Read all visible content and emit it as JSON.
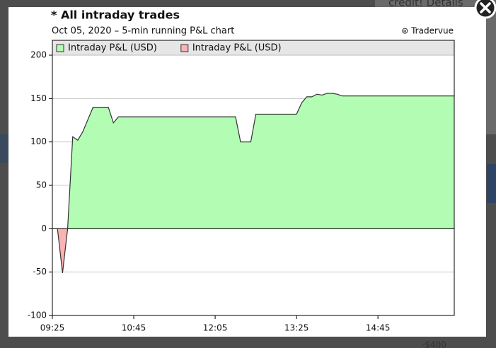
{
  "background": {
    "top_text": "credit! Details",
    "bottom_text": "-$400"
  },
  "chart_data": {
    "type": "area",
    "title": "* All intraday trades",
    "subtitle": "Oct 05, 2020 – 5-min running P&L chart",
    "source": "⊚ Tradervue",
    "legend": [
      {
        "name": "Intraday P&L (USD)",
        "color": "#b3fcb3"
      },
      {
        "name": "Intraday P&L (USD)",
        "color": "#fcb3b3"
      }
    ],
    "positive_color": "#b3fcb3",
    "negative_color": "#fcb3b3",
    "line_color": "#333333",
    "x": [
      "09:30",
      "09:35",
      "09:40",
      "09:45",
      "09:50",
      "09:55",
      "10:00",
      "10:05",
      "10:10",
      "10:15",
      "10:20",
      "10:25",
      "10:30",
      "12:25",
      "12:30",
      "12:35",
      "12:40",
      "12:45",
      "13:25",
      "13:30",
      "13:35",
      "13:40",
      "13:45",
      "13:50",
      "13:55",
      "14:00",
      "14:05",
      "14:10",
      "16:00"
    ],
    "values": [
      0,
      -51,
      0,
      106,
      102,
      112,
      126,
      140,
      140,
      140,
      140,
      122,
      129,
      129,
      100,
      100,
      100,
      132,
      132,
      145,
      152,
      152,
      155,
      154,
      156,
      156,
      155,
      153,
      153
    ],
    "xlim": [
      "09:25",
      "16:00"
    ],
    "xticks": [
      "09:25",
      "10:45",
      "12:05",
      "13:25",
      "14:45"
    ],
    "ylim": [
      -100,
      200
    ],
    "yticks": [
      -100,
      -50,
      0,
      50,
      100,
      150,
      200
    ],
    "grid": true
  }
}
